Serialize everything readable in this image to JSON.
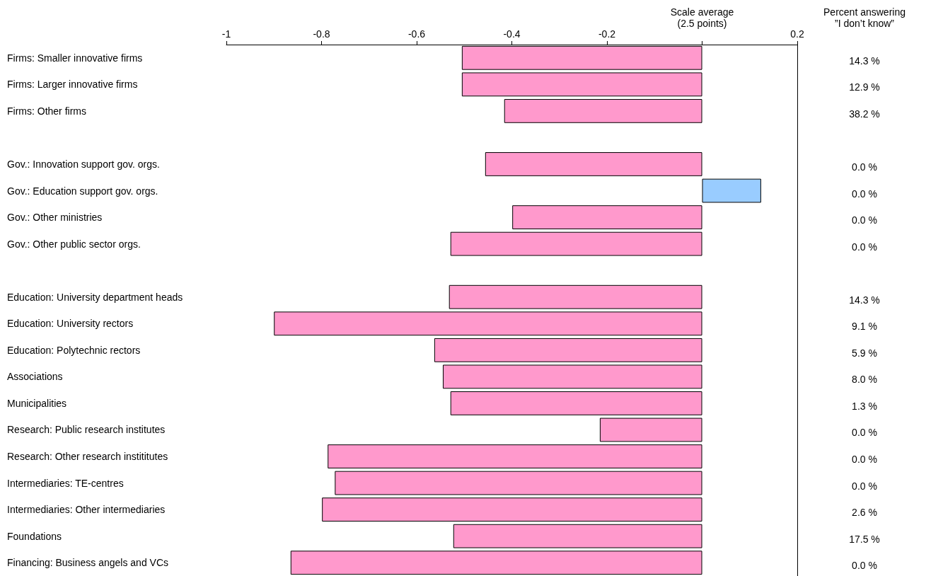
{
  "chart_data": {
    "type": "bar",
    "orientation": "horizontal",
    "categories": [
      "Firms: Smaller innovative firms",
      "Firms: Larger innovative firms",
      "Firms: Other firms",
      null,
      "Gov.: Innovation support gov. orgs.",
      "Gov.: Education support gov. orgs.",
      "Gov.: Other ministries",
      "Gov.: Other public sector orgs.",
      null,
      "Education: University department heads",
      "Education: University rectors",
      "Education: Polytechnic rectors",
      "Associations",
      "Municipalities",
      "Research: Public research institutes",
      "Research: Other research instititutes",
      "Intermediaries: TE-centres",
      "Intermediaries: Other intermediaries",
      "Foundations",
      "Financing: Business angels and VCs"
    ],
    "values": [
      -0.505,
      -0.505,
      -0.416,
      null,
      -0.456,
      0.124,
      -0.399,
      -0.529,
      null,
      -0.532,
      -0.9,
      -0.563,
      -0.545,
      -0.529,
      -0.215,
      -0.787,
      -0.772,
      -0.799,
      -0.523,
      -0.865
    ],
    "colors": [
      "#ff99cc",
      "#ff99cc",
      "#ff99cc",
      null,
      "#ff99cc",
      "#99ccff",
      "#ff99cc",
      "#ff99cc",
      null,
      "#ff99cc",
      "#ff99cc",
      "#ff99cc",
      "#ff99cc",
      "#ff99cc",
      "#ff99cc",
      "#ff99cc",
      "#ff99cc",
      "#ff99cc",
      "#ff99cc",
      "#ff99cc"
    ],
    "xlim": [
      -1,
      0.2
    ],
    "xticks": [
      -1,
      -0.8,
      -0.6,
      -0.4,
      -0.2,
      {
        "value": 0,
        "label": null
      },
      0.2
    ],
    "grid": false,
    "annotations": [
      "Scale average\n(2.5 points)",
      "Percent answering\n”I don’t know”",
      "14.3 %",
      "12.9 %",
      "38.2 %",
      "0.0 %",
      "0.0 %",
      "0.0 %",
      "0.0 %",
      "14.3 %",
      "9.1 %",
      "5.9 %",
      "8.0 %",
      "1.3 %",
      "0.0 %",
      "0.0 %",
      "0.0 %",
      "2.6 %",
      "17.5 %",
      "0.0 %"
    ]
  }
}
